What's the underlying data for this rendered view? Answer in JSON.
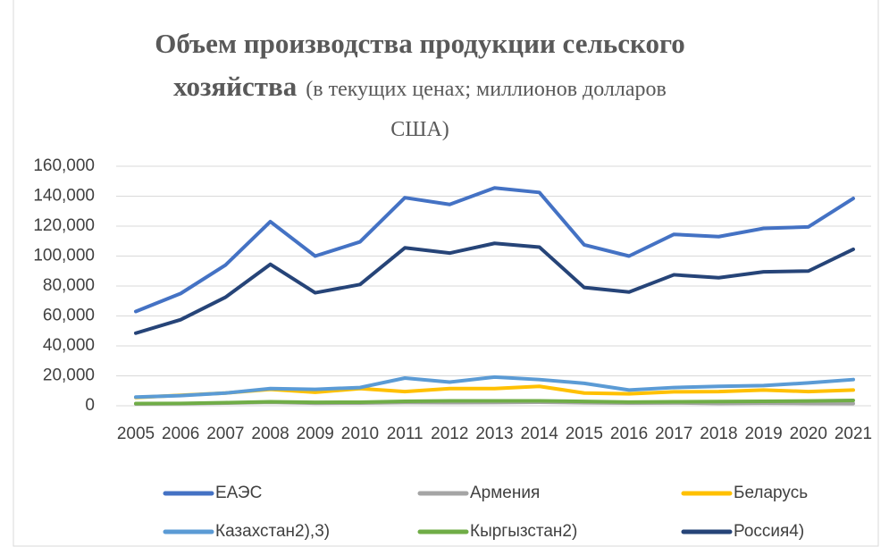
{
  "chart_data": {
    "type": "line",
    "title": "Объем производства продукции сельского хозяйства",
    "subtitle": "(в текущих ценах; миллионов долларов США)",
    "categories": [
      "2005",
      "2006",
      "2007",
      "2008",
      "2009",
      "2010",
      "2011",
      "2012",
      "2013",
      "2014",
      "2015",
      "2016",
      "2017",
      "2018",
      "2019",
      "2020",
      "2021"
    ],
    "series": [
      {
        "name": "ЕАЭС",
        "color": "#4472c4",
        "values": [
          63000,
          75000,
          94000,
          123000,
          100000,
          109500,
          139000,
          134500,
          145500,
          142500,
          107500,
          100000,
          114500,
          113000,
          118500,
          119500,
          138500
        ]
      },
      {
        "name": "Армения",
        "color": "#a5a5a5",
        "values": [
          1200,
          1400,
          1800,
          2300,
          1700,
          1800,
          2200,
          2100,
          2200,
          2400,
          2000,
          1800,
          1900,
          1600,
          1700,
          1600,
          1500
        ]
      },
      {
        "name": "Беларусь",
        "color": "#ffc000",
        "values": [
          5500,
          7000,
          8500,
          11000,
          9000,
          11500,
          9500,
          11500,
          11500,
          13000,
          8500,
          8000,
          9300,
          9500,
          10500,
          9500,
          10500
        ]
      },
      {
        "name": "Казахстан2),3)",
        "color": "#5b9bd5",
        "values": [
          5800,
          6800,
          8500,
          11500,
          11000,
          12200,
          18500,
          15800,
          19200,
          17500,
          15000,
          10500,
          12200,
          13000,
          13500,
          15300,
          17500
        ]
      },
      {
        "name": "Кыргызстан2)",
        "color": "#70ad47",
        "values": [
          1500,
          1600,
          2100,
          2700,
          2300,
          2400,
          3000,
          3300,
          3300,
          3300,
          2900,
          2500,
          2700,
          2800,
          3000,
          3200,
          3600
        ]
      },
      {
        "name": "Россия4)",
        "color": "#264478",
        "values": [
          48500,
          57500,
          72500,
          94500,
          75500,
          81000,
          105500,
          102000,
          108500,
          106000,
          79000,
          76000,
          87500,
          85500,
          89500,
          90000,
          104500
        ]
      }
    ],
    "ylim": [
      0,
      160000
    ],
    "yticks": [
      0,
      {
        "value": 20000,
        "label": "20,000"
      },
      {
        "value": 40000,
        "label": "40,000"
      },
      {
        "value": 60000,
        "label": "60,000"
      },
      {
        "value": 80000,
        "label": "80,000"
      },
      {
        "value": 100000,
        "label": "100,000"
      },
      {
        "value": 120000,
        "label": "120,000"
      },
      {
        "value": 140000,
        "label": "140,000"
      },
      {
        "value": 160000,
        "label": "160,000"
      }
    ],
    "grid": true,
    "legend": "bottom"
  }
}
